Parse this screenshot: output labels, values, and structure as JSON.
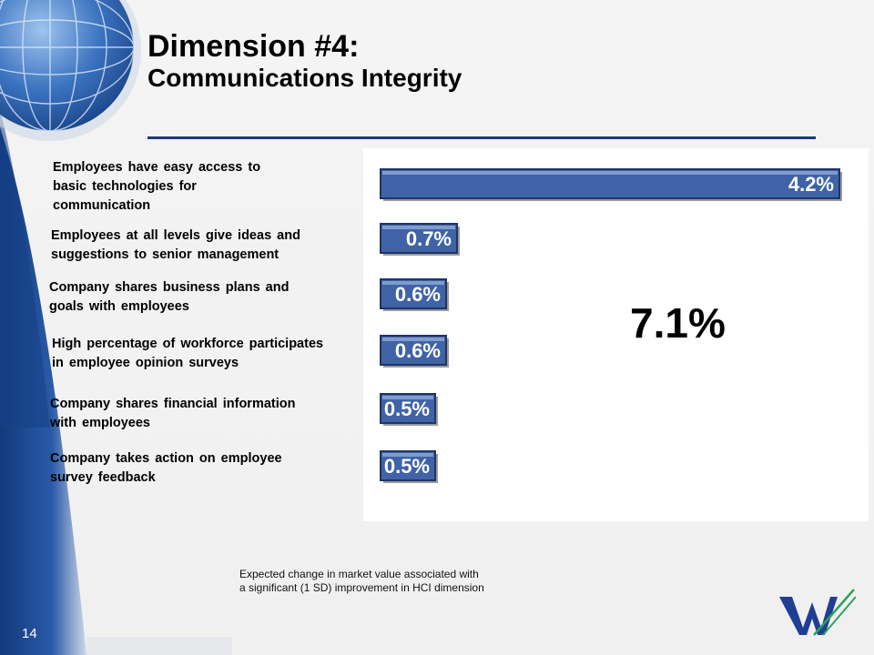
{
  "slide": {
    "title_line1": "Dimension #4:",
    "title_line2": "Communications Integrity",
    "total_label": "7.1%",
    "footnote_line1": "Expected change in market value associated with",
    "footnote_line2": "a significant (1 SD) improvement in HCI dimension",
    "page_number": "14"
  },
  "colors": {
    "bar_fill": "#3f63a6",
    "bar_border": "#1e3566",
    "band_blue": "#1f4f9a",
    "rule": "#1f3a78"
  },
  "chart_data": {
    "type": "bar",
    "orientation": "horizontal",
    "categories": [
      "Employees have easy access to basic technologies for communication",
      "Employees at all levels give ideas and suggestions to senior management",
      "Company shares business plans and goals with employees",
      "High percentage of workforce participates in employee opinion surveys",
      "Company shares financial information with employees",
      "Company takes action on employee survey feedback"
    ],
    "category_lines": [
      [
        "Employees  have  easy  access  to",
        "basic  technologies  for",
        "communication"
      ],
      [
        "Employees  at  all  levels  give  ideas  and",
        "suggestions  to  senior  management"
      ],
      [
        "Company  shares  business  plans  and",
        "goals  with  employees"
      ],
      [
        "High  percentage  of  workforce  participates",
        "in  employee  opinion  surveys"
      ],
      [
        "Company  shares  financial  information",
        "with  employees"
      ],
      [
        "Company  takes  action  on  employee",
        "survey  feedback"
      ]
    ],
    "values": [
      4.2,
      0.7,
      0.6,
      0.6,
      0.5,
      0.5
    ],
    "value_labels": [
      "4.2%",
      "0.7%",
      "0.6%",
      "0.6%",
      "0.5%",
      "0.5%"
    ],
    "total": 7.1,
    "xlim": [
      0,
      4.2
    ],
    "grid": false,
    "legend": "none"
  }
}
